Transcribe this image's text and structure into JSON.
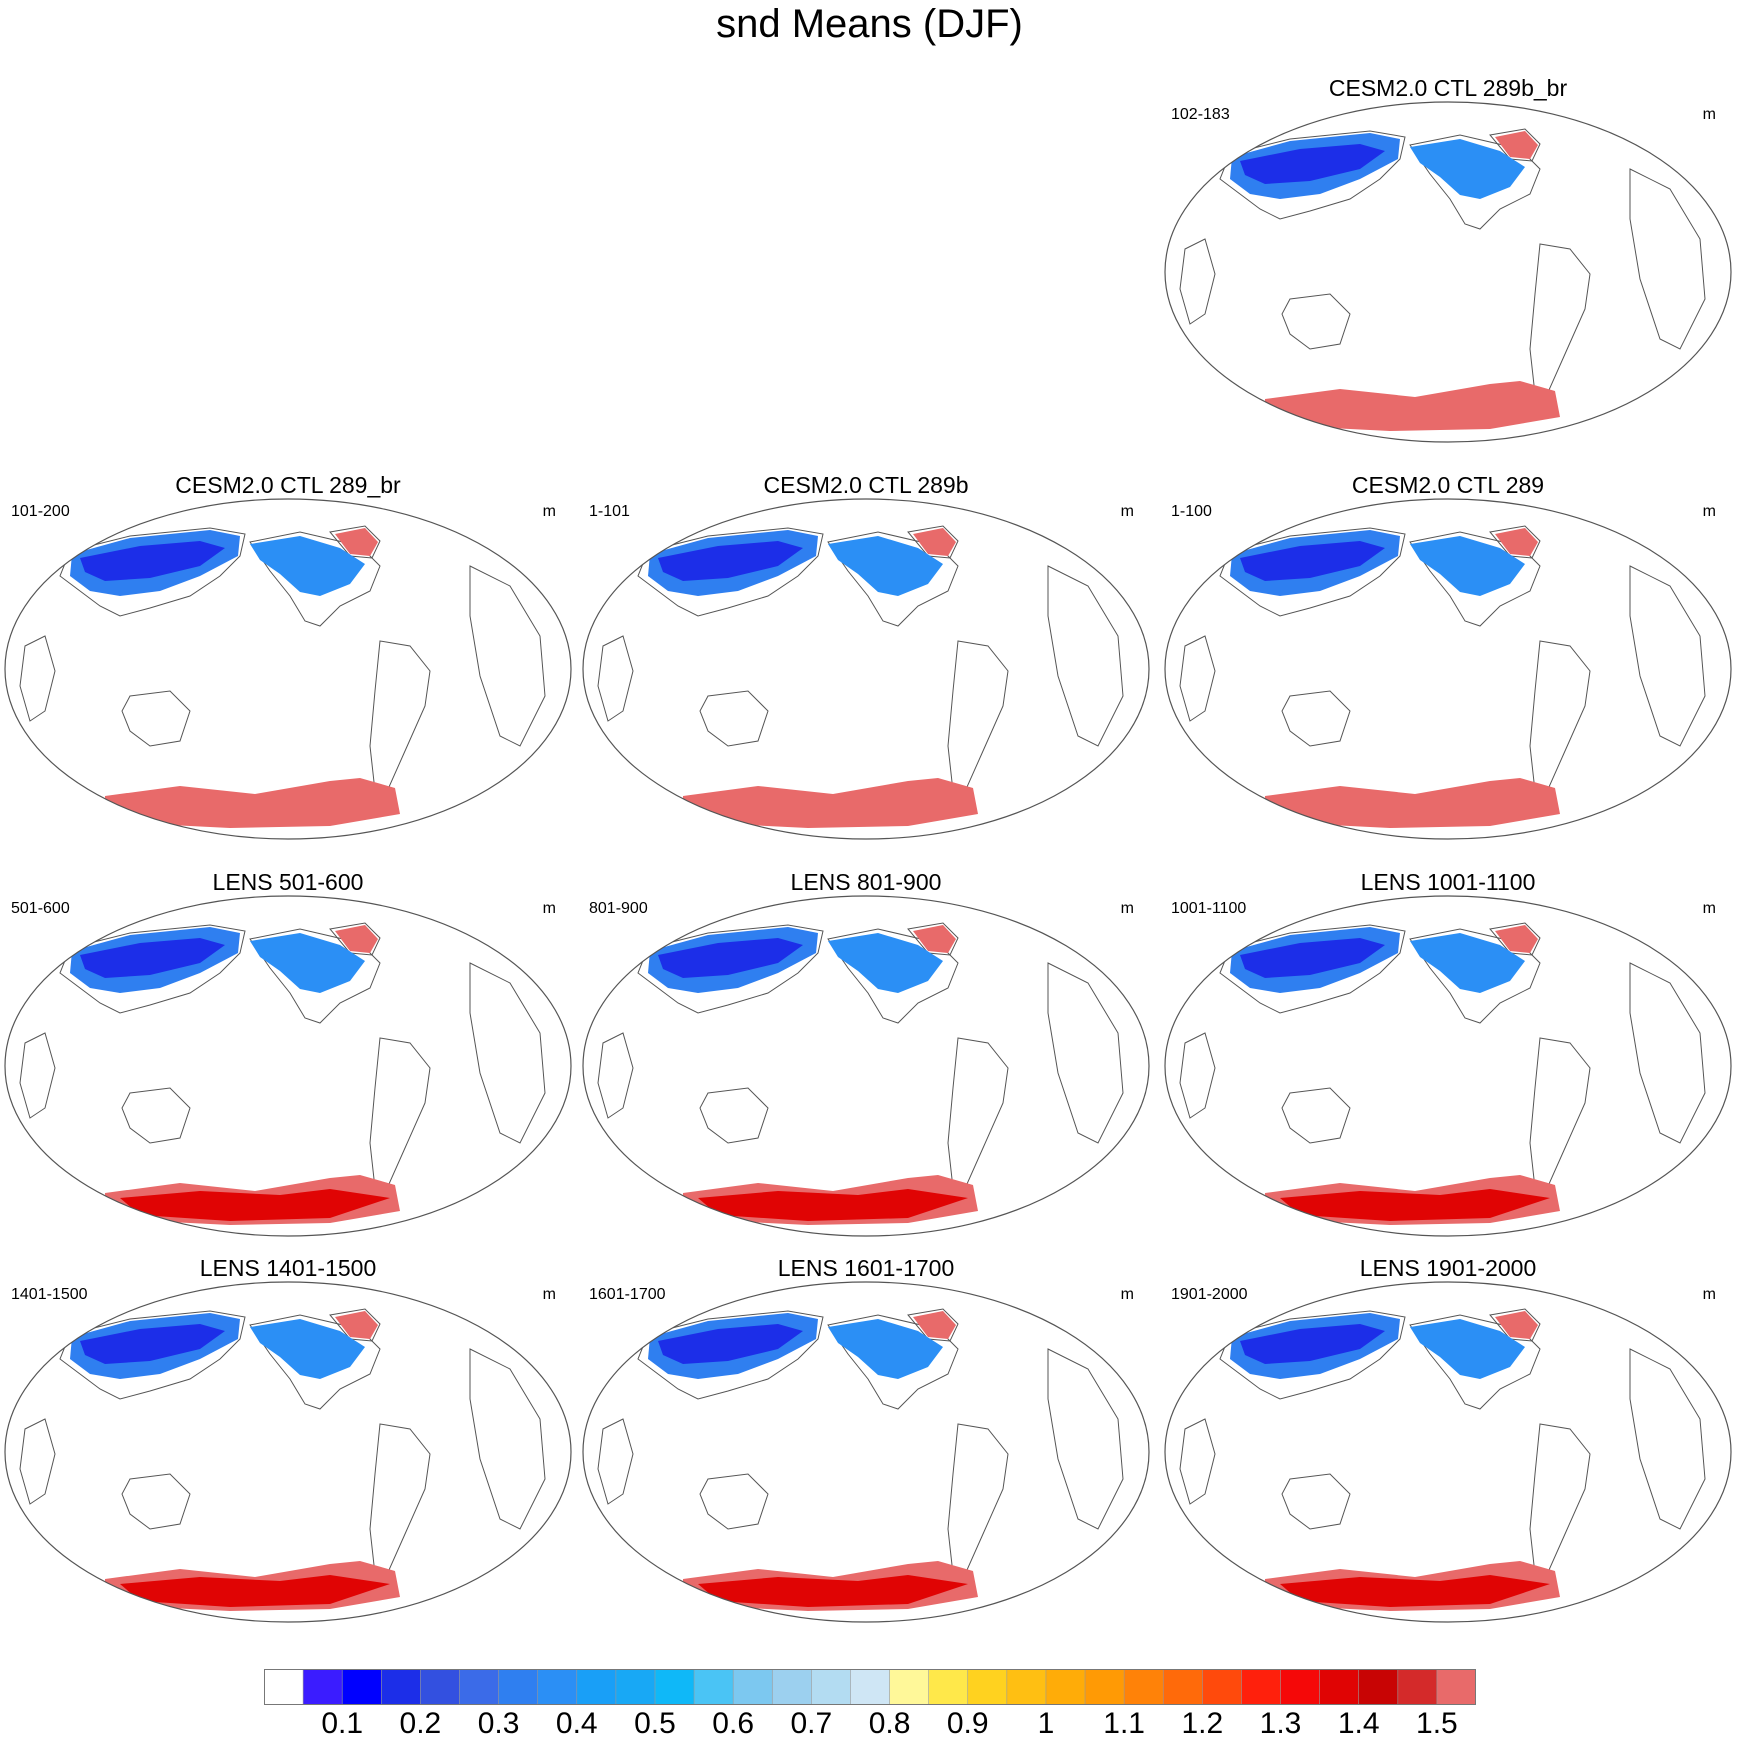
{
  "figure": {
    "title": "snd Means (DJF)",
    "units": "m"
  },
  "chart_data": {
    "type": "heatmap",
    "title": "snd Means (DJF)",
    "variable": "snd",
    "season": "DJF",
    "units": "m",
    "projection": "Robinson",
    "panels": [
      {
        "title": "CESM2.0 CTL 289b_br",
        "years": "102-183",
        "units": "m"
      },
      {
        "title": "CESM2.0 CTL 289_br",
        "years": "101-200",
        "units": "m"
      },
      {
        "title": "CESM2.0 CTL 289b",
        "years": "1-101",
        "units": "m"
      },
      {
        "title": "CESM2.0 CTL 289",
        "years": "1-100",
        "units": "m"
      },
      {
        "title": "LENS 501-600",
        "years": "501-600",
        "units": "m"
      },
      {
        "title": "LENS 801-900",
        "years": "801-900",
        "units": "m"
      },
      {
        "title": "LENS 1001-1100",
        "years": "1001-1100",
        "units": "m"
      },
      {
        "title": "LENS 1401-1500",
        "years": "1401-1500",
        "units": "m"
      },
      {
        "title": "LENS 1601-1700",
        "years": "1601-1700",
        "units": "m"
      },
      {
        "title": "LENS 1901-2000",
        "years": "1901-2000",
        "units": "m"
      }
    ],
    "colorbar": {
      "labels": [
        "0.1",
        "0.2",
        "0.3",
        "0.4",
        "0.5",
        "0.6",
        "0.7",
        "0.8",
        "0.9",
        "1",
        "1.1",
        "1.2",
        "1.3",
        "1.4",
        "1.5"
      ],
      "levels": [
        0.05,
        0.1,
        0.15,
        0.2,
        0.25,
        0.3,
        0.35,
        0.4,
        0.45,
        0.5,
        0.55,
        0.6,
        0.65,
        0.7,
        0.75,
        0.8,
        0.85,
        0.9,
        0.95,
        1,
        1.05,
        1.1,
        1.15,
        1.2,
        1.25,
        1.3,
        1.35,
        1.4,
        1.45,
        1.5
      ],
      "colors": [
        "#ffffff",
        "#3b1cff",
        "#0000ff",
        "#1c2ee8",
        "#3350e0",
        "#3b6be8",
        "#2f7ff0",
        "#2b8ff5",
        "#199ff7",
        "#18a8f5",
        "#0fb8f8",
        "#4ac4f5",
        "#7cc8f0",
        "#9cd0ef",
        "#b3dcf2",
        "#cfe6f5",
        "#fff899",
        "#ffe84a",
        "#ffd21f",
        "#ffbf12",
        "#ffac08",
        "#ff9a05",
        "#ff8208",
        "#ff6a0a",
        "#ff4a0c",
        "#ff200c",
        "#f50808",
        "#e00404",
        "#c80404",
        "#d42a2a",
        "#e86a6a"
      ]
    }
  }
}
